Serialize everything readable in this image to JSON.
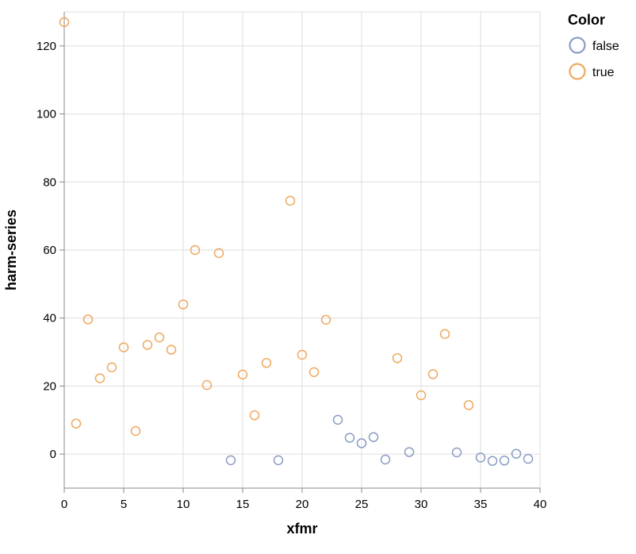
{
  "chart_data": {
    "type": "scatter",
    "xlabel": "xfmr",
    "ylabel": "harm-series",
    "xlim": [
      0,
      40
    ],
    "ylim": [
      -10,
      130
    ],
    "x_ticks": [
      0,
      5,
      10,
      15,
      20,
      25,
      30,
      35,
      40
    ],
    "y_ticks": [
      0,
      20,
      40,
      60,
      80,
      100,
      120
    ],
    "grid": true,
    "legend": {
      "title": "Color",
      "placement": "top-right",
      "entries": [
        {
          "label": "false",
          "color": "#8a9dc3"
        },
        {
          "label": "true",
          "color": "#f0a860"
        }
      ]
    },
    "series": [
      {
        "name": "false",
        "color": "#8a9dc3",
        "points": [
          [
            14,
            -1.8
          ],
          [
            18,
            -1.8
          ],
          [
            23,
            10.1
          ],
          [
            24,
            4.8
          ],
          [
            25,
            3.2
          ],
          [
            26,
            5.0
          ],
          [
            27,
            -1.6
          ],
          [
            29,
            0.6
          ],
          [
            33,
            0.5
          ],
          [
            35,
            -1.0
          ],
          [
            36,
            -2.0
          ],
          [
            37,
            -1.9
          ],
          [
            38,
            0.1
          ],
          [
            39,
            -1.4
          ]
        ]
      },
      {
        "name": "true",
        "color": "#f0a860",
        "points": [
          [
            0,
            127.0
          ],
          [
            1,
            9.0
          ],
          [
            2,
            39.6
          ],
          [
            3,
            22.3
          ],
          [
            4,
            25.5
          ],
          [
            5,
            31.4
          ],
          [
            6,
            6.8
          ],
          [
            7,
            32.1
          ],
          [
            8,
            34.3
          ],
          [
            9,
            30.7
          ],
          [
            10,
            44.0
          ],
          [
            11,
            60.0
          ],
          [
            12,
            20.3
          ],
          [
            13,
            59.1
          ],
          [
            15,
            23.4
          ],
          [
            16,
            11.4
          ],
          [
            17,
            26.8
          ],
          [
            19,
            74.5
          ],
          [
            20,
            29.2
          ],
          [
            21,
            24.1
          ],
          [
            22,
            39.5
          ],
          [
            28,
            28.2
          ],
          [
            30,
            17.3
          ],
          [
            31,
            23.5
          ],
          [
            32,
            35.3
          ],
          [
            34,
            14.4
          ]
        ]
      }
    ]
  }
}
